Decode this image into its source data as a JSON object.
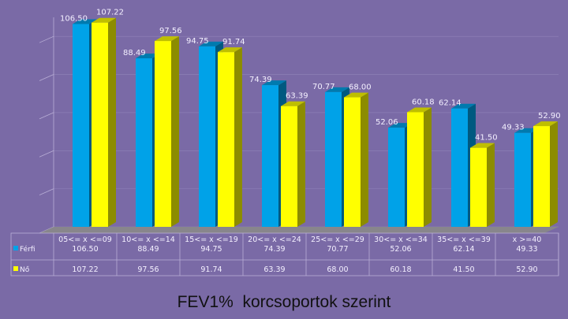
{
  "title": "FEV1%  korcsoportok szerint",
  "colors": {
    "background": "#7a6aa6",
    "ferfi": "#00a2e8",
    "no": "#ffff00",
    "floor": "#8a8a8a"
  },
  "chart_data": {
    "type": "bar",
    "bar_style": "3d-clustered",
    "ylim": [
      0,
      110
    ],
    "grid": true,
    "legend": "bottom-left",
    "categories": [
      "05<= x <=09",
      "10<= x <=14",
      "15<= x <=19",
      "20<= x <=24",
      "25<= x <=29",
      "30<= x <=34",
      "35<= x <=39",
      "x >=40"
    ],
    "series": [
      {
        "name": "Férfi",
        "color": "#00a2e8",
        "values": [
          106.5,
          88.49,
          94.75,
          74.39,
          70.77,
          52.06,
          62.14,
          49.33
        ],
        "labels": [
          "106.50",
          "88.49",
          "94.75",
          "74.39",
          "70.77",
          "52.06",
          "62.14",
          "49.33"
        ]
      },
      {
        "name": "Nő",
        "color": "#ffff00",
        "values": [
          107.22,
          97.56,
          91.74,
          63.39,
          68.0,
          60.18,
          41.5,
          52.9
        ],
        "labels": [
          "107.22",
          "97.56",
          "91.74",
          "63.39",
          "68.00",
          "60.18",
          "41.50",
          "52.90"
        ]
      }
    ]
  }
}
